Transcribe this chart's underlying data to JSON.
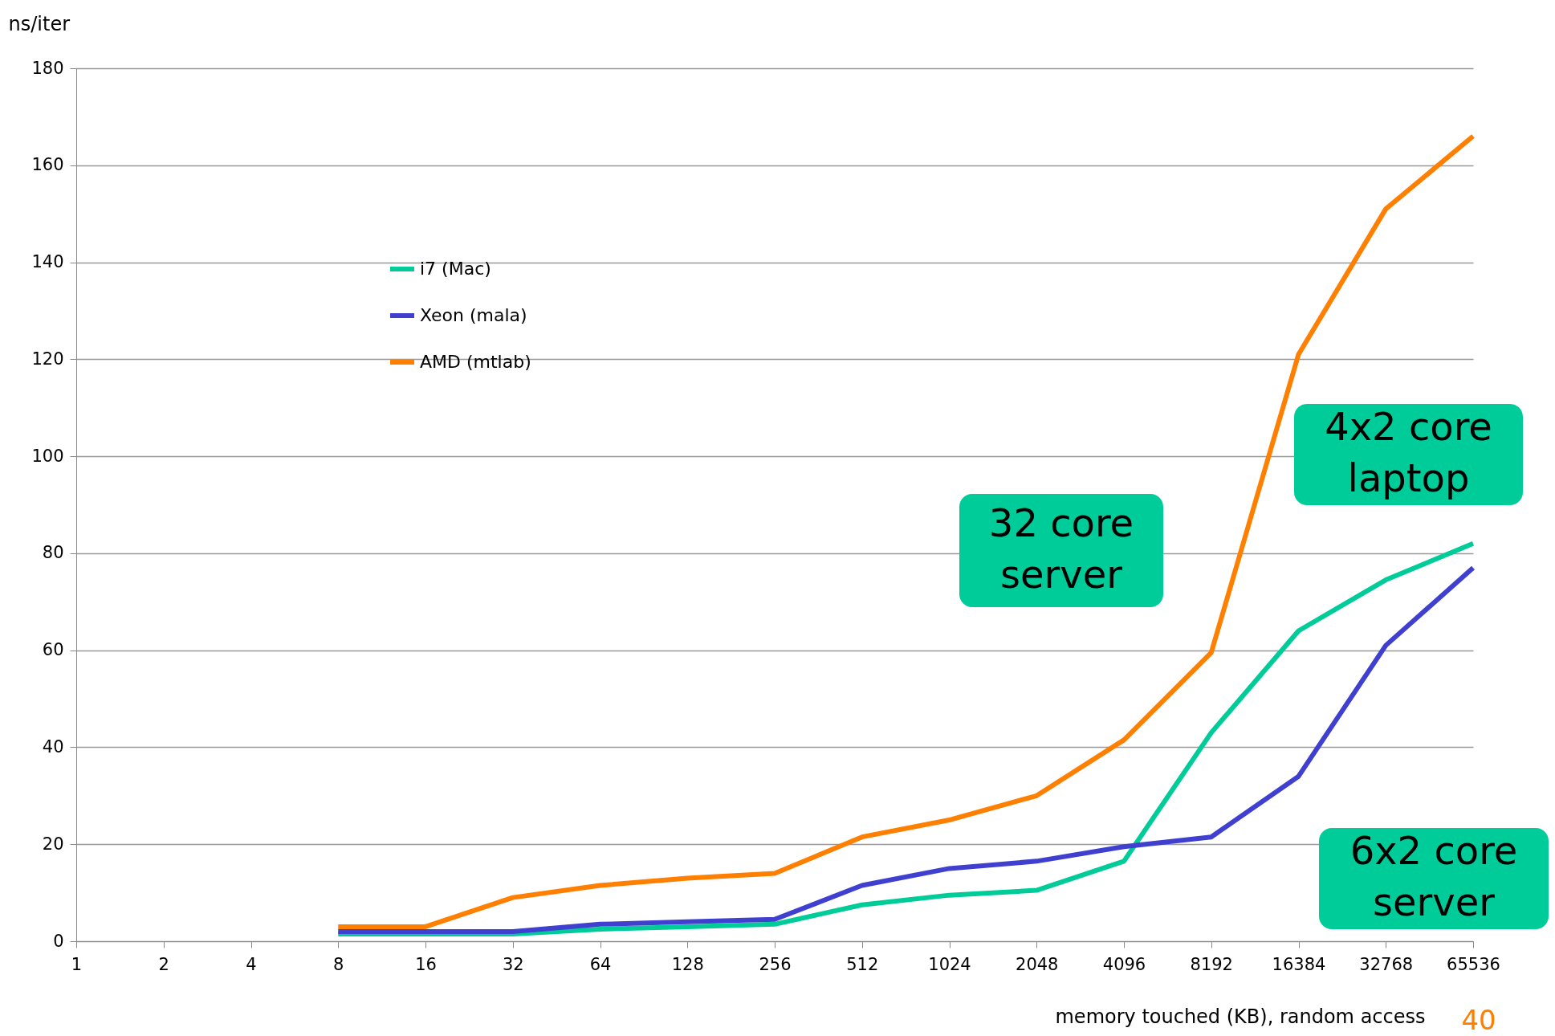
{
  "chart_data": {
    "type": "line",
    "xlabel": "memory touched (KB), random access",
    "ylabel": "ns/iter",
    "categories": [
      "1",
      "2",
      "4",
      "8",
      "16",
      "32",
      "64",
      "128",
      "256",
      "512",
      "1024",
      "2048",
      "4096",
      "8192",
      "16384",
      "32768",
      "65536"
    ],
    "series": [
      {
        "name": "i7 (Mac)",
        "color": "#00cc99",
        "values": [
          null,
          null,
          null,
          1.5,
          1.5,
          1.5,
          2.5,
          3,
          3.5,
          7.5,
          9.5,
          10.5,
          16.5,
          43,
          64,
          74.5,
          82
        ]
      },
      {
        "name": "Xeon (mala)",
        "color": "#4040d0",
        "values": [
          null,
          null,
          null,
          2,
          2,
          2,
          3.5,
          4,
          4.5,
          11.5,
          15,
          16.5,
          19.5,
          21.5,
          34,
          61,
          77
        ]
      },
      {
        "name": "AMD (mtlab)",
        "color": "#ff7f00",
        "values": [
          null,
          null,
          null,
          3,
          3,
          9,
          11.5,
          13,
          14,
          21.5,
          25,
          30,
          41.5,
          59.5,
          121,
          151,
          166
        ]
      }
    ],
    "ylim": [
      0,
      180
    ],
    "yticks": [
      0,
      20,
      40,
      60,
      80,
      100,
      120,
      140,
      160,
      180
    ],
    "grid": "y",
    "legend": "top left",
    "marker": "none",
    "line_style": "solid",
    "annotations": [
      "32 core server",
      "4x2 core laptop",
      "6x2 core server",
      "40"
    ]
  }
}
